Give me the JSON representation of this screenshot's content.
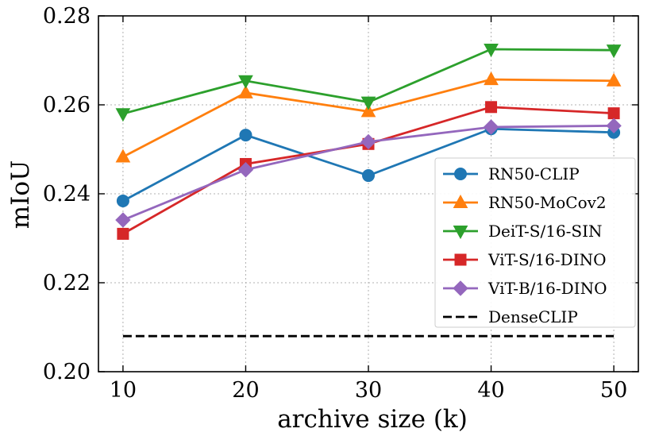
{
  "chart_data": {
    "type": "line",
    "title": "",
    "xlabel": "archive size (k)",
    "ylabel": "mIoU",
    "x": [
      10,
      20,
      30,
      40,
      50
    ],
    "xlim": [
      8,
      52
    ],
    "ylim": [
      0.2,
      0.28
    ],
    "xticks": [
      "10",
      "20",
      "30",
      "40",
      "50"
    ],
    "yticks": [
      "0.20",
      "0.22",
      "0.24",
      "0.26",
      "0.28"
    ],
    "grid": true,
    "legend_position": "lower-right",
    "series": [
      {
        "name": "RN50-CLIP",
        "color": "#1f77b4",
        "marker": "circle",
        "values": [
          0.2384,
          0.2532,
          0.2441,
          0.2546,
          0.2538
        ]
      },
      {
        "name": "RN50-MoCov2",
        "color": "#ff7f0e",
        "marker": "triangle-up",
        "values": [
          0.2483,
          0.2627,
          0.2585,
          0.2657,
          0.2654
        ]
      },
      {
        "name": "DeiT-S/16-SIN",
        "color": "#2ca02c",
        "marker": "triangle-down",
        "values": [
          0.258,
          0.2654,
          0.2606,
          0.2725,
          0.2723
        ]
      },
      {
        "name": "ViT-S/16-DINO",
        "color": "#d62728",
        "marker": "square",
        "values": [
          0.231,
          0.2467,
          0.2512,
          0.2595,
          0.2581
        ]
      },
      {
        "name": "ViT-B/16-DINO",
        "color": "#9467bd",
        "marker": "diamond",
        "values": [
          0.2341,
          0.2454,
          0.2517,
          0.255,
          0.2553
        ]
      },
      {
        "name": "DenseCLIP",
        "color": "#000000",
        "marker": "none",
        "dashed": true,
        "values": [
          0.208,
          0.208,
          0.208,
          0.208,
          0.208
        ]
      }
    ]
  }
}
